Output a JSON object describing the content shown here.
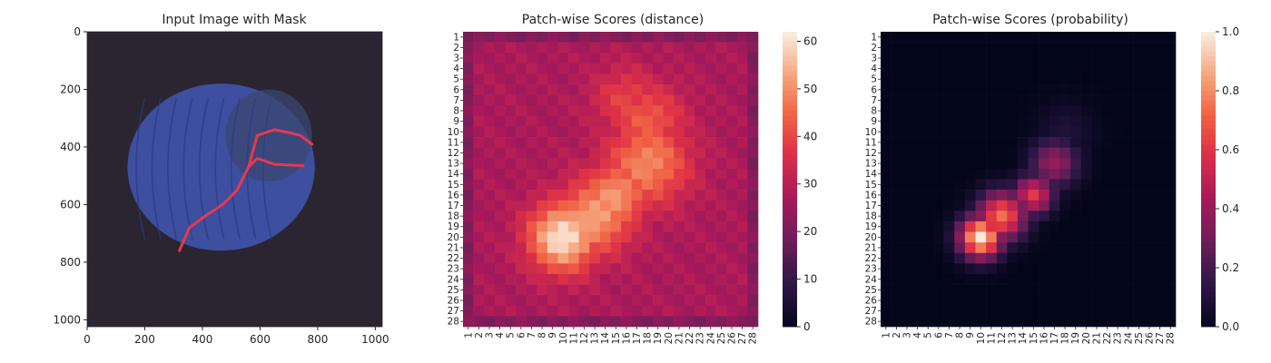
{
  "chart_data": [
    {
      "type": "image",
      "title": "Input Image with Mask",
      "xlim": [
        0,
        1024
      ],
      "ylim": [
        1024,
        0
      ],
      "xticks": [
        0,
        200,
        400,
        600,
        800,
        1000
      ],
      "yticks": [
        0,
        200,
        400,
        600,
        800,
        1000
      ],
      "background_color": "#2a2530",
      "object": {
        "shape": "ellipse",
        "color": "#3d4f9e"
      },
      "mask": {
        "color": "#e8384f",
        "paths": [
          [
            [
              320,
              760
            ],
            [
              355,
              680
            ],
            [
              410,
              640
            ],
            [
              470,
              600
            ],
            [
              520,
              550
            ],
            [
              560,
              470
            ],
            [
              590,
              440
            ],
            [
              650,
              460
            ],
            [
              750,
              465
            ]
          ],
          [
            [
              560,
              470
            ],
            [
              590,
              360
            ],
            [
              650,
              340
            ],
            [
              700,
              350
            ],
            [
              740,
              360
            ],
            [
              780,
              390
            ]
          ]
        ]
      }
    },
    {
      "type": "heatmap",
      "title": "Patch-wise Scores (distance)",
      "rows": 28,
      "cols": 28,
      "row_labels": [
        "1",
        "2",
        "3",
        "4",
        "5",
        "6",
        "7",
        "8",
        "9",
        "10",
        "11",
        "12",
        "13",
        "14",
        "15",
        "16",
        "17",
        "18",
        "19",
        "20",
        "21",
        "22",
        "23",
        "24",
        "25",
        "26",
        "27",
        "28"
      ],
      "col_labels": [
        "1",
        "2",
        "3",
        "4",
        "5",
        "6",
        "7",
        "8",
        "9",
        "10",
        "11",
        "12",
        "13",
        "14",
        "15",
        "16",
        "17",
        "18",
        "19",
        "20",
        "21",
        "22",
        "23",
        "24",
        "25",
        "26",
        "27",
        "28"
      ],
      "vmin": 0,
      "vmax": 62,
      "colorbar_ticks": [
        0,
        10,
        20,
        30,
        40,
        50,
        60
      ],
      "colormap": "rocket",
      "base_value": 28,
      "hotspots": [
        {
          "row": 20,
          "col": 10,
          "value": 62,
          "spread": 2.3
        },
        {
          "row": 18,
          "col": 13,
          "value": 54,
          "spread": 2.5
        },
        {
          "row": 16,
          "col": 15,
          "value": 52,
          "spread": 2.2
        },
        {
          "row": 13,
          "col": 18,
          "value": 50,
          "spread": 2.8
        },
        {
          "row": 9,
          "col": 18,
          "value": 44,
          "spread": 2.5
        },
        {
          "row": 7,
          "col": 16,
          "value": 40,
          "spread": 2.2
        }
      ]
    },
    {
      "type": "heatmap",
      "title": "Patch-wise Scores (probability)",
      "rows": 28,
      "cols": 28,
      "row_labels": [
        "1",
        "2",
        "3",
        "4",
        "5",
        "6",
        "7",
        "8",
        "9",
        "10",
        "11",
        "12",
        "13",
        "14",
        "15",
        "16",
        "17",
        "18",
        "19",
        "20",
        "21",
        "22",
        "23",
        "24",
        "25",
        "26",
        "27",
        "28"
      ],
      "col_labels": [
        "1",
        "2",
        "3",
        "4",
        "5",
        "6",
        "7",
        "8",
        "9",
        "10",
        "11",
        "12",
        "13",
        "14",
        "15",
        "16",
        "17",
        "18",
        "19",
        "20",
        "21",
        "22",
        "23",
        "24",
        "25",
        "26",
        "27",
        "28"
      ],
      "vmin": 0,
      "vmax": 1,
      "colorbar_ticks": [
        "0.0",
        "0.2",
        "0.4",
        "0.6",
        "0.8",
        "1.0"
      ],
      "colormap": "rocket",
      "base_value": 0,
      "hotspots": [
        {
          "row": 20,
          "col": 10,
          "value": 1.0,
          "spread": 1.4
        },
        {
          "row": 18,
          "col": 12,
          "value": 0.75,
          "spread": 1.6
        },
        {
          "row": 16,
          "col": 15,
          "value": 0.62,
          "spread": 1.3
        },
        {
          "row": 13,
          "col": 17,
          "value": 0.4,
          "spread": 1.6
        },
        {
          "row": 10,
          "col": 18,
          "value": 0.1,
          "spread": 2.0
        }
      ]
    }
  ]
}
